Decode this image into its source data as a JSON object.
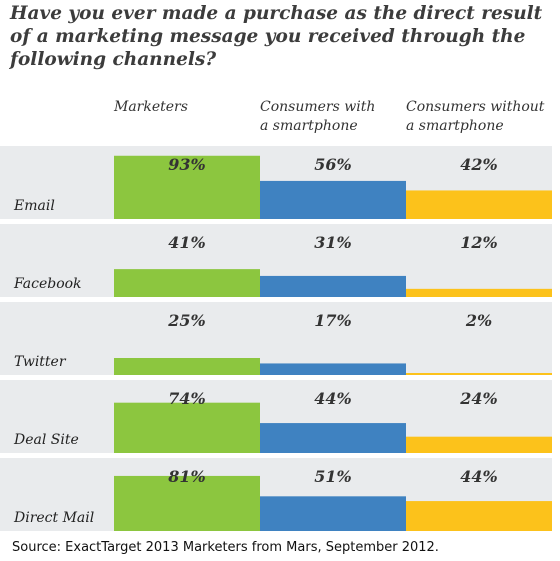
{
  "title": "Have you ever made a purchase as the direct result of a marketing message you received through the following channels?",
  "source": "Source: ExactTarget 2013 Marketers from Mars, September 2012.",
  "colors": {
    "row_band": "#e9ebed",
    "text": "#333333"
  },
  "chart_data": {
    "type": "bar",
    "title": "Have you ever made a purchase as the direct result of a marketing message you received through the following channels?",
    "categories": [
      "Email",
      "Facebook",
      "Twitter",
      "Deal Site",
      "Direct Mail"
    ],
    "series": [
      {
        "name": "Marketers",
        "color": "#8cc63f",
        "values": [
          93,
          41,
          25,
          74,
          81
        ]
      },
      {
        "name": "Consumers with\na smartphone",
        "color": "#3f82c1",
        "values": [
          56,
          31,
          17,
          44,
          51
        ]
      },
      {
        "name": "Consumers without\na smartphone",
        "color": "#fcc21b",
        "values": [
          42,
          12,
          2,
          24,
          44
        ]
      }
    ],
    "value_suffix": "%",
    "ylim": [
      0,
      100
    ]
  }
}
